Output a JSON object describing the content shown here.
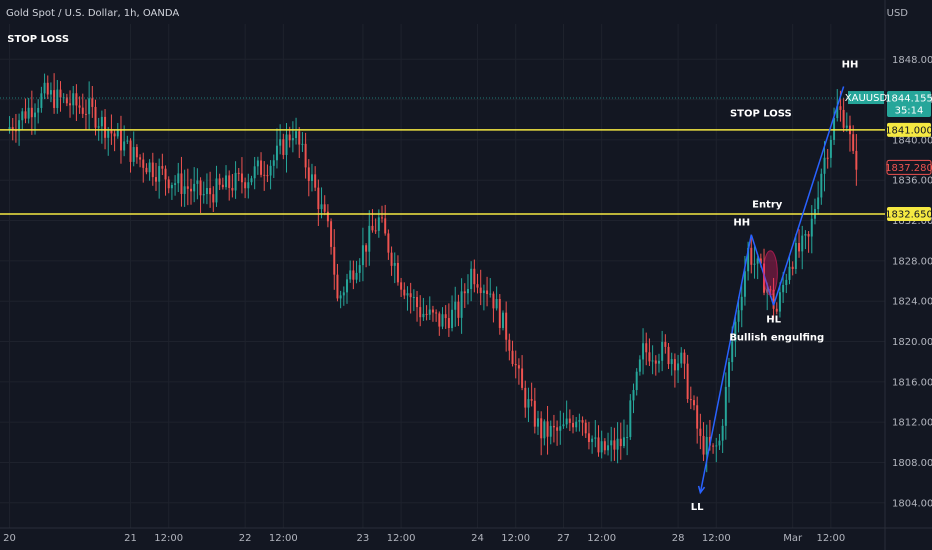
{
  "header": {
    "symbol_line": "Gold Spot / U.S. Dollar, 1h, OANDA",
    "currency": "USD"
  },
  "colors": {
    "background": "#131722",
    "up": "#26a69a",
    "down": "#ef5350",
    "level_line": "#f5e942",
    "trend_line": "#2962ff",
    "grid": "#1e222d"
  },
  "chart_data": {
    "type": "candlestick",
    "instrument": "XAUUSD",
    "timeframe": "1h",
    "y_ticks": [
      1804,
      1808,
      1812,
      1816,
      1820,
      1824,
      1828,
      1832,
      1836,
      1840,
      1844,
      1848
    ],
    "y_tick_labels": [
      "1804.000",
      "1808.000",
      "1812.000",
      "1816.000",
      "1820.000",
      "1824.000",
      "1828.000",
      "1832.000",
      "1836.000",
      "1840.000",
      "1844.000",
      "1848.000"
    ],
    "ylim": [
      1801.5,
      1851.5
    ],
    "x_ticks": [
      {
        "t": 0,
        "label": "20"
      },
      {
        "t": 38,
        "label": "21"
      },
      {
        "t": 50,
        "label": "12:00"
      },
      {
        "t": 74,
        "label": "22"
      },
      {
        "t": 86,
        "label": "12:00"
      },
      {
        "t": 111,
        "label": "23"
      },
      {
        "t": 123,
        "label": "12:00"
      },
      {
        "t": 147,
        "label": "24"
      },
      {
        "t": 159,
        "label": "12:00"
      },
      {
        "t": 174,
        "label": "27"
      },
      {
        "t": 186,
        "label": "12:00"
      },
      {
        "t": 210,
        "label": "28"
      },
      {
        "t": 222,
        "label": "12:00"
      },
      {
        "t": 246,
        "label": "Mar"
      },
      {
        "t": 258,
        "label": "12:00"
      }
    ],
    "xlim": [
      -3,
      275
    ],
    "horizontal_levels": [
      {
        "value": 1841.0,
        "label": "1841.000"
      },
      {
        "value": 1832.65,
        "label": "1832.650"
      }
    ],
    "price_tags": [
      {
        "name": "XAUUSD",
        "value": "1844.155",
        "countdown": "35:14",
        "level": 1844.155
      },
      {
        "name": "",
        "value": "1837.280",
        "countdown": "",
        "level": 1837.28
      }
    ],
    "dotted_level": 1844.155,
    "anchors": [
      {
        "t": 0,
        "p": 1841
      },
      {
        "t": 12,
        "p": 1844.5
      },
      {
        "t": 26,
        "p": 1843
      },
      {
        "t": 40,
        "p": 1838.5
      },
      {
        "t": 52,
        "p": 1836
      },
      {
        "t": 62,
        "p": 1834.5
      },
      {
        "t": 74,
        "p": 1836
      },
      {
        "t": 84,
        "p": 1838
      },
      {
        "t": 90,
        "p": 1841
      },
      {
        "t": 96,
        "p": 1836
      },
      {
        "t": 102,
        "p": 1830
      },
      {
        "t": 104,
        "p": 1824
      },
      {
        "t": 110,
        "p": 1828
      },
      {
        "t": 117,
        "p": 1832
      },
      {
        "t": 124,
        "p": 1826
      },
      {
        "t": 130,
        "p": 1823
      },
      {
        "t": 136,
        "p": 1822
      },
      {
        "t": 142,
        "p": 1823
      },
      {
        "t": 146,
        "p": 1827
      },
      {
        "t": 152,
        "p": 1825
      },
      {
        "t": 158,
        "p": 1820
      },
      {
        "t": 162,
        "p": 1815
      },
      {
        "t": 168,
        "p": 1811
      },
      {
        "t": 174,
        "p": 1811
      },
      {
        "t": 180,
        "p": 1813
      },
      {
        "t": 186,
        "p": 1809
      },
      {
        "t": 194,
        "p": 1810
      },
      {
        "t": 200,
        "p": 1819
      },
      {
        "t": 206,
        "p": 1819
      },
      {
        "t": 212,
        "p": 1818
      },
      {
        "t": 218,
        "p": 1810
      },
      {
        "t": 222,
        "p": 1809
      },
      {
        "t": 224,
        "p": 1810
      },
      {
        "t": 228,
        "p": 1820
      },
      {
        "t": 233,
        "p": 1829
      },
      {
        "t": 238,
        "p": 1826
      },
      {
        "t": 242,
        "p": 1823
      },
      {
        "t": 246,
        "p": 1828
      },
      {
        "t": 252,
        "p": 1830
      },
      {
        "t": 256,
        "p": 1837
      },
      {
        "t": 261,
        "p": 1843
      },
      {
        "t": 264,
        "p": 1842
      },
      {
        "t": 266,
        "p": 1838
      }
    ],
    "trendline": [
      {
        "t": 217,
        "p": 1805
      },
      {
        "t": 233,
        "p": 1830.6
      },
      {
        "t": 240,
        "p": 1823.6
      },
      {
        "t": 262,
        "p": 1845.3
      }
    ],
    "ellipse": {
      "t": 239,
      "p": 1826.8,
      "dt": 2.2,
      "dp": 2.2
    },
    "annotations": [
      {
        "text": "STOP LOSS",
        "t": 9,
        "p": 1849.7
      },
      {
        "text": "STOP LOSS",
        "t": 236,
        "p": 1842.3
      },
      {
        "text": "HH",
        "t": 264,
        "p": 1847.2
      },
      {
        "text": "HH",
        "t": 230,
        "p": 1831.5
      },
      {
        "text": "Entry",
        "t": 238,
        "p": 1833.3
      },
      {
        "text": "HL",
        "t": 240,
        "p": 1821.9
      },
      {
        "text": "Bullish engulfing",
        "t": 241,
        "p": 1820.1
      },
      {
        "text": "LL",
        "t": 216,
        "p": 1803.3
      }
    ]
  }
}
